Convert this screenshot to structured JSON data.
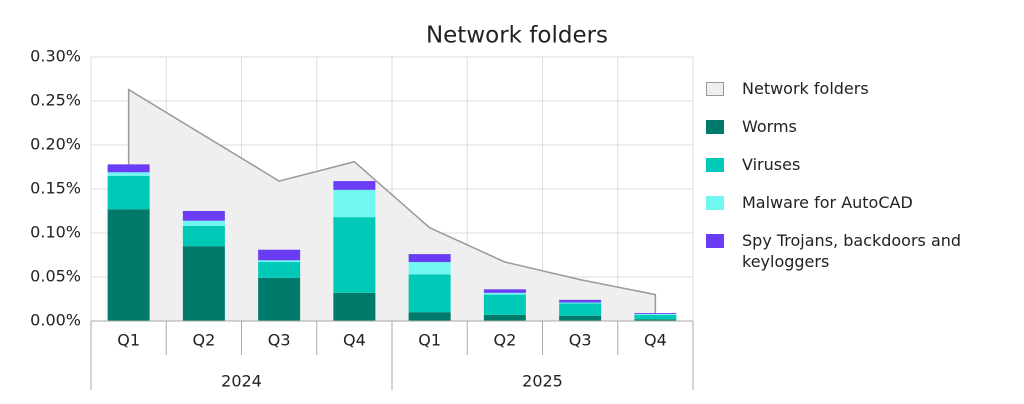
{
  "chart_data": {
    "type": "bar",
    "title": "Network folders",
    "categories": [
      "Q1",
      "Q2",
      "Q3",
      "Q4",
      "Q1",
      "Q2",
      "Q3",
      "Q4"
    ],
    "groups": [
      "2024",
      "2025"
    ],
    "series": [
      {
        "name": "Network folders",
        "type": "area",
        "color": "#efefef",
        "values": [
          0.263,
          0.211,
          0.159,
          0.181,
          0.106,
          0.067,
          0.047,
          0.03
        ]
      },
      {
        "name": "Worms",
        "type": "bar",
        "color": "#007a6b",
        "values": [
          0.127,
          0.085,
          0.049,
          0.032,
          0.01,
          0.007,
          0.006,
          0.002
        ]
      },
      {
        "name": "Viruses",
        "type": "bar",
        "color": "#00c9b7",
        "values": [
          0.038,
          0.023,
          0.018,
          0.086,
          0.043,
          0.023,
          0.014,
          0.005
        ]
      },
      {
        "name": "Malware for AutoCAD",
        "type": "bar",
        "color": "#70f7f2",
        "values": [
          0.004,
          0.006,
          0.002,
          0.031,
          0.014,
          0.002,
          0.001,
          0.001
        ]
      },
      {
        "name": "Spy Trojans, backdoors and keyloggers",
        "type": "bar",
        "color": "#6b3cf5",
        "values": [
          0.009,
          0.011,
          0.012,
          0.01,
          0.009,
          0.004,
          0.003,
          0.001
        ]
      }
    ],
    "ylim": [
      0,
      0.3
    ],
    "yticks": [
      {
        "value": 0,
        "label": "0.00%"
      },
      {
        "value": 0.05,
        "label": "0.05%"
      },
      {
        "value": 0.1,
        "label": "0.10%"
      },
      {
        "value": 0.15,
        "label": "0.15%"
      },
      {
        "value": 0.2,
        "label": "0.20%"
      },
      {
        "value": 0.25,
        "label": "0.25%"
      },
      {
        "value": 0.3,
        "label": "0.30%"
      }
    ],
    "grid": true,
    "legend": "right"
  }
}
